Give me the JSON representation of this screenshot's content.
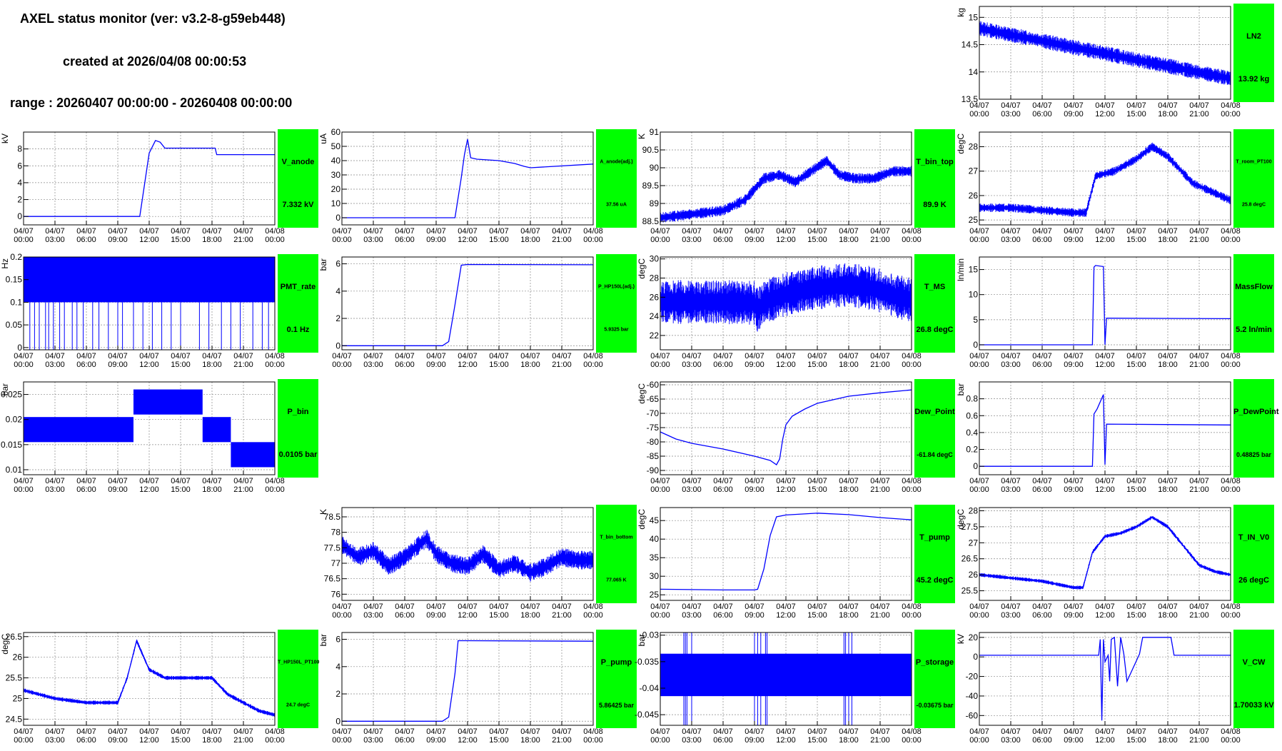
{
  "header": {
    "title": "AXEL status monitor (ver: v3.2-8-g59eb448)",
    "created": "created at 2026/04/08 00:00:53",
    "range": "range : 20260407 00:00:00 - 20260408 00:00:00"
  },
  "colors": {
    "line": "#0000ff",
    "badge": "#00ff00",
    "grid": "#999999"
  },
  "x_ticks": [
    "04/07\n00:00",
    "04/07\n03:00",
    "04/07\n06:00",
    "04/07\n09:00",
    "04/07\n12:00",
    "04/07\n15:00",
    "04/07\n18:00",
    "04/07\n21:00",
    "04/08\n00:00"
  ],
  "chart_data": [
    {
      "id": "LN2",
      "type": "line",
      "ylabel": "kg",
      "name": "LN2",
      "value": "13.92 kg",
      "ylim": [
        13.5,
        15.2
      ],
      "yticks": [
        "13.5",
        "14",
        "14.5",
        "15"
      ],
      "ytick_vals": [
        13.5,
        14,
        14.5,
        15
      ],
      "x": [
        0,
        1,
        2,
        3,
        4,
        5,
        6,
        7,
        8
      ],
      "y": [
        14.8,
        14.68,
        14.57,
        14.45,
        14.34,
        14.22,
        14.11,
        13.99,
        13.88
      ],
      "band": 0.28
    },
    {
      "id": "V_anode",
      "type": "line",
      "ylabel": "kV",
      "name": "V_anode",
      "value": "7.332 kV",
      "ylim": [
        -1,
        10
      ],
      "yticks": [
        "0",
        "2",
        "4",
        "6",
        "8"
      ],
      "ytick_vals": [
        0,
        2,
        4,
        6,
        8
      ],
      "x": [
        0,
        3.7,
        4.0,
        4.2,
        4.35,
        4.5,
        4.8,
        6.1,
        6.15,
        8
      ],
      "y": [
        0,
        0,
        7.5,
        9.0,
        8.8,
        8.1,
        8.1,
        8.1,
        7.33,
        7.33
      ]
    },
    {
      "id": "A_anode",
      "type": "line",
      "ylabel": "uA",
      "name": "A_anode(adj.)",
      "value": "37.56 uA",
      "ylim": [
        -5,
        60
      ],
      "yticks": [
        "0",
        "10",
        "20",
        "30",
        "40",
        "50",
        "60"
      ],
      "ytick_vals": [
        0,
        10,
        20,
        30,
        40,
        50,
        60
      ],
      "x": [
        0,
        3.6,
        3.8,
        3.9,
        4.0,
        4.1,
        4.3,
        5.0,
        5.5,
        5.8,
        6.0,
        8
      ],
      "y": [
        0,
        0,
        28,
        44,
        55,
        42,
        41,
        40,
        38,
        36,
        35,
        37.6
      ]
    },
    {
      "id": "T_bin_top",
      "type": "line",
      "ylabel": "K",
      "name": "T_bin_top",
      "value": "89.9 K",
      "ylim": [
        88.4,
        91.0
      ],
      "yticks": [
        "88.5",
        "89",
        "89.5",
        "90",
        "90.5",
        "91"
      ],
      "ytick_vals": [
        88.5,
        89,
        89.5,
        90,
        90.5,
        91
      ],
      "x": [
        0,
        1,
        2,
        2.7,
        3.3,
        3.8,
        4.3,
        4.8,
        5.3,
        5.7,
        6.2,
        6.8,
        7.4,
        8
      ],
      "y": [
        88.6,
        88.7,
        88.8,
        89.1,
        89.7,
        89.8,
        89.6,
        89.9,
        90.2,
        89.8,
        89.7,
        89.7,
        89.9,
        89.9
      ],
      "band": 0.3
    },
    {
      "id": "T_room",
      "type": "line",
      "ylabel": "degC",
      "name": "T_room_PT100",
      "value": "25.8 degC",
      "ylim": [
        24.8,
        28.6
      ],
      "yticks": [
        "25",
        "26",
        "27",
        "28"
      ],
      "ytick_vals": [
        25,
        26,
        27,
        28
      ],
      "x": [
        0,
        1,
        2,
        3,
        3.4,
        3.7,
        4.3,
        5.0,
        5.5,
        6.0,
        6.8,
        7.5,
        8
      ],
      "y": [
        25.5,
        25.5,
        25.4,
        25.3,
        25.3,
        26.8,
        27.0,
        27.5,
        28.0,
        27.6,
        26.5,
        26.1,
        25.8
      ],
      "band": 0.35
    },
    {
      "id": "PMT_rate",
      "type": "step",
      "ylabel": "Hz",
      "name": "PMT_rate",
      "value": "0.1 Hz",
      "ylim": [
        -0.005,
        0.2
      ],
      "yticks": [
        "0",
        "0.05",
        "0.1",
        "0.15",
        "0.2"
      ],
      "ytick_vals": [
        0,
        0.05,
        0.1,
        0.15,
        0.2
      ],
      "levels": [
        0.1,
        0.2
      ],
      "spikes": [
        0.2,
        0.35,
        0.5,
        0.7,
        0.8,
        0.95,
        1.15,
        1.3,
        1.55,
        1.7,
        1.9,
        2.2,
        2.4,
        2.7,
        3.0,
        3.15,
        3.5,
        3.8,
        4.1,
        4.4,
        4.7,
        5.0,
        5.6,
        5.9,
        6.3,
        6.6,
        6.9,
        7.3,
        7.6,
        7.8
      ]
    },
    {
      "id": "P_HP",
      "type": "line",
      "ylabel": "bar",
      "name": "P_HP150L(adj.)",
      "value": "5.9325 bar",
      "ylim": [
        -0.3,
        6.5
      ],
      "yticks": [
        "0",
        "2",
        "4",
        "6"
      ],
      "ytick_vals": [
        0,
        2,
        4,
        6
      ],
      "x": [
        0,
        3.2,
        3.4,
        3.6,
        3.8,
        4.0,
        8
      ],
      "y": [
        0,
        0,
        0.3,
        3.0,
        5.9,
        5.95,
        5.93
      ]
    },
    {
      "id": "T_MS",
      "type": "line",
      "ylabel": "degC",
      "name": "T_MS",
      "value": "26.8 degC",
      "ylim": [
        20.5,
        30.2
      ],
      "yticks": [
        "22",
        "24",
        "26",
        "28",
        "30"
      ],
      "ytick_vals": [
        22,
        24,
        26,
        28,
        30
      ],
      "x": [
        0,
        1,
        2,
        3,
        3.1,
        3.3,
        4,
        5,
        6,
        6.8,
        7.5,
        8
      ],
      "y": [
        25.5,
        25.5,
        25.5,
        25.4,
        24.6,
        25.5,
        26.3,
        27.0,
        27.3,
        26.9,
        26.1,
        25.7
      ],
      "band": 4.6
    },
    {
      "id": "MassFlow",
      "type": "line",
      "ylabel": "ln/min",
      "name": "MassFlow",
      "value": "5.2 ln/min",
      "ylim": [
        -1,
        17.5
      ],
      "yticks": [
        "0",
        "5",
        "10",
        "15"
      ],
      "ytick_vals": [
        0,
        5,
        10,
        15
      ],
      "x": [
        0,
        3.6,
        3.65,
        3.7,
        3.95,
        4.0,
        4.05,
        4.1,
        8
      ],
      "y": [
        0,
        0,
        15.5,
        15.8,
        15.6,
        0,
        5.3,
        5.3,
        5.2
      ]
    },
    {
      "id": "P_bin",
      "type": "step",
      "ylabel": "bar",
      "name": "P_bin",
      "value": "0.0105 bar",
      "ylim": [
        0.009,
        0.0275
      ],
      "yticks": [
        "0.01",
        "0.015",
        "0.02",
        "0.025"
      ],
      "ytick_vals": [
        0.01,
        0.015,
        0.02,
        0.025
      ],
      "bands": [
        [
          0,
          3.5,
          0.0155,
          0.0205
        ],
        [
          3.5,
          5.7,
          0.021,
          0.026
        ],
        [
          5.7,
          6.6,
          0.0155,
          0.0205
        ],
        [
          6.6,
          8,
          0.0105,
          0.0155
        ]
      ]
    },
    {
      "id": "Dew_Point",
      "type": "line",
      "ylabel": "degC",
      "name": "Dew_Point",
      "value": "-61.84 degC",
      "ylim": [
        -91.5,
        -59
      ],
      "yticks": [
        "-90",
        "-85",
        "-80",
        "-75",
        "-70",
        "-65",
        "-60"
      ],
      "ytick_vals": [
        -90,
        -85,
        -80,
        -75,
        -70,
        -65,
        -60
      ],
      "x": [
        0,
        0.5,
        1,
        2,
        3,
        3.5,
        3.7,
        3.8,
        3.9,
        4.0,
        4.2,
        4.6,
        5,
        6,
        7,
        8
      ],
      "y": [
        -76.5,
        -79,
        -80.5,
        -82.5,
        -85,
        -86.5,
        -88,
        -86,
        -79,
        -74,
        -71,
        -68.5,
        -66.5,
        -64,
        -62.8,
        -61.8
      ]
    },
    {
      "id": "P_DewPoint",
      "type": "line",
      "ylabel": "bar",
      "name": "P_DewPoint",
      "value": "0.48825 bar",
      "ylim": [
        -0.1,
        1.0
      ],
      "yticks": [
        "0",
        "0.2",
        "0.4",
        "0.6",
        "0.8"
      ],
      "ytick_vals": [
        0,
        0.2,
        0.4,
        0.6,
        0.8
      ],
      "x": [
        0,
        3.6,
        3.65,
        3.75,
        3.95,
        4.0,
        4.05,
        8
      ],
      "y": [
        0,
        0,
        0.62,
        0.68,
        0.85,
        0.02,
        0.5,
        0.49
      ]
    },
    {
      "id": "T_bin_bottom",
      "type": "line",
      "ylabel": "K",
      "name": "T_bin_bottom",
      "value": "77.065 K",
      "ylim": [
        75.8,
        78.8
      ],
      "yticks": [
        "76",
        "76.5",
        "77",
        "77.5",
        "78",
        "78.5"
      ],
      "ytick_vals": [
        76,
        76.5,
        77,
        77.5,
        78,
        78.5
      ],
      "x": [
        0,
        0.5,
        1,
        1.5,
        2,
        2.7,
        3,
        3.5,
        4,
        4.5,
        5,
        5.5,
        6,
        6.5,
        7,
        7.5,
        8
      ],
      "y": [
        77.6,
        77.2,
        77.4,
        76.9,
        77.2,
        77.8,
        77.3,
        77.0,
        76.9,
        77.3,
        76.8,
        77.0,
        76.7,
        76.9,
        77.2,
        77.1,
        77.1
      ],
      "band": 0.6
    },
    {
      "id": "T_pump",
      "type": "line",
      "ylabel": "degC",
      "name": "T_pump",
      "value": "45.2 degC",
      "ylim": [
        23.5,
        48.5
      ],
      "yticks": [
        "25",
        "30",
        "35",
        "40",
        "45"
      ],
      "ytick_vals": [
        25,
        30,
        35,
        40,
        45
      ],
      "x": [
        0,
        1,
        2,
        3,
        3.1,
        3.3,
        3.5,
        3.7,
        4,
        5,
        6,
        7,
        8
      ],
      "y": [
        26.5,
        26.4,
        26.3,
        26.3,
        26.5,
        32,
        41,
        46,
        46.5,
        47,
        46.6,
        45.8,
        45.2
      ]
    },
    {
      "id": "T_IN_V0",
      "type": "line",
      "ylabel": "degC",
      "name": "T_IN_V0",
      "value": "26 degC",
      "ylim": [
        25.2,
        28.1
      ],
      "yticks": [
        "25.5",
        "26",
        "26.5",
        "27",
        "27.5",
        "28"
      ],
      "ytick_vals": [
        25.5,
        26,
        26.5,
        27,
        27.5,
        28
      ],
      "x": [
        0,
        1,
        2,
        3,
        3.3,
        3.6,
        4,
        4.5,
        5.0,
        5.5,
        6.0,
        6.5,
        7.0,
        7.5,
        8
      ],
      "y": [
        26.0,
        25.9,
        25.8,
        25.6,
        25.6,
        26.7,
        27.2,
        27.3,
        27.5,
        27.8,
        27.5,
        26.9,
        26.3,
        26.1,
        26.0
      ],
      "band": 0.12
    },
    {
      "id": "T_HP150L",
      "type": "line",
      "ylabel": "degC",
      "name": "T_HP150L_PT100",
      "value": "24.7 degC",
      "ylim": [
        24.35,
        26.6
      ],
      "yticks": [
        "24.5",
        "25",
        "25.5",
        "26",
        "26.5"
      ],
      "ytick_vals": [
        24.5,
        25,
        25.5,
        26,
        26.5
      ],
      "x": [
        0,
        1,
        2,
        3.0,
        3.3,
        3.6,
        4.0,
        4.5,
        5,
        6,
        6.5,
        7,
        7.5,
        8
      ],
      "y": [
        25.2,
        25.0,
        24.9,
        24.9,
        25.5,
        26.4,
        25.7,
        25.5,
        25.5,
        25.5,
        25.1,
        24.9,
        24.7,
        24.6
      ],
      "band": 0.1
    },
    {
      "id": "P_pump",
      "type": "line",
      "ylabel": "bar",
      "name": "P_pump",
      "value": "5.86425 bar",
      "ylim": [
        -0.3,
        6.5
      ],
      "yticks": [
        "0",
        "2",
        "4",
        "6"
      ],
      "ytick_vals": [
        0,
        2,
        4,
        6
      ],
      "x": [
        0,
        3.2,
        3.4,
        3.6,
        3.7,
        4.0,
        8
      ],
      "y": [
        0,
        0,
        0.3,
        3.5,
        5.9,
        5.9,
        5.86
      ]
    },
    {
      "id": "P_storage",
      "type": "step",
      "ylabel": "bar",
      "name": "P_storage",
      "value": "-0.03675 bar",
      "ylim": [
        -0.047,
        -0.0295
      ],
      "yticks": [
        "-0.045",
        "-0.04",
        "-0.035",
        "-0.03"
      ],
      "ytick_vals": [
        -0.045,
        -0.04,
        -0.035,
        -0.03
      ],
      "bands": [
        [
          0,
          8,
          -0.0415,
          -0.0335
        ]
      ],
      "spikes": [
        0.75,
        0.8,
        0.85,
        1.0,
        3.0,
        3.1,
        3.2,
        3.35,
        3.4,
        5.85,
        5.9,
        6.0,
        6.1
      ]
    },
    {
      "id": "V_CW",
      "type": "line",
      "ylabel": "kV",
      "name": "V_CW",
      "value": "1.70033 kV",
      "ylim": [
        -70,
        25
      ],
      "yticks": [
        "-60",
        "-40",
        "-20",
        "0",
        "20"
      ],
      "ytick_vals": [
        -60,
        -40,
        -20,
        0,
        20
      ],
      "x": [
        0,
        3.8,
        3.85,
        3.9,
        3.95,
        4.0,
        4.1,
        4.15,
        4.2,
        4.3,
        4.4,
        4.5,
        4.6,
        4.7,
        5.1,
        5.2,
        5.5,
        6.1,
        6.2,
        8
      ],
      "y": [
        1.7,
        1.7,
        18,
        -65,
        18,
        -5,
        1.7,
        -25,
        18,
        20,
        -30,
        20,
        3,
        -25,
        3,
        20,
        20,
        20,
        1.7,
        1.7
      ]
    }
  ]
}
